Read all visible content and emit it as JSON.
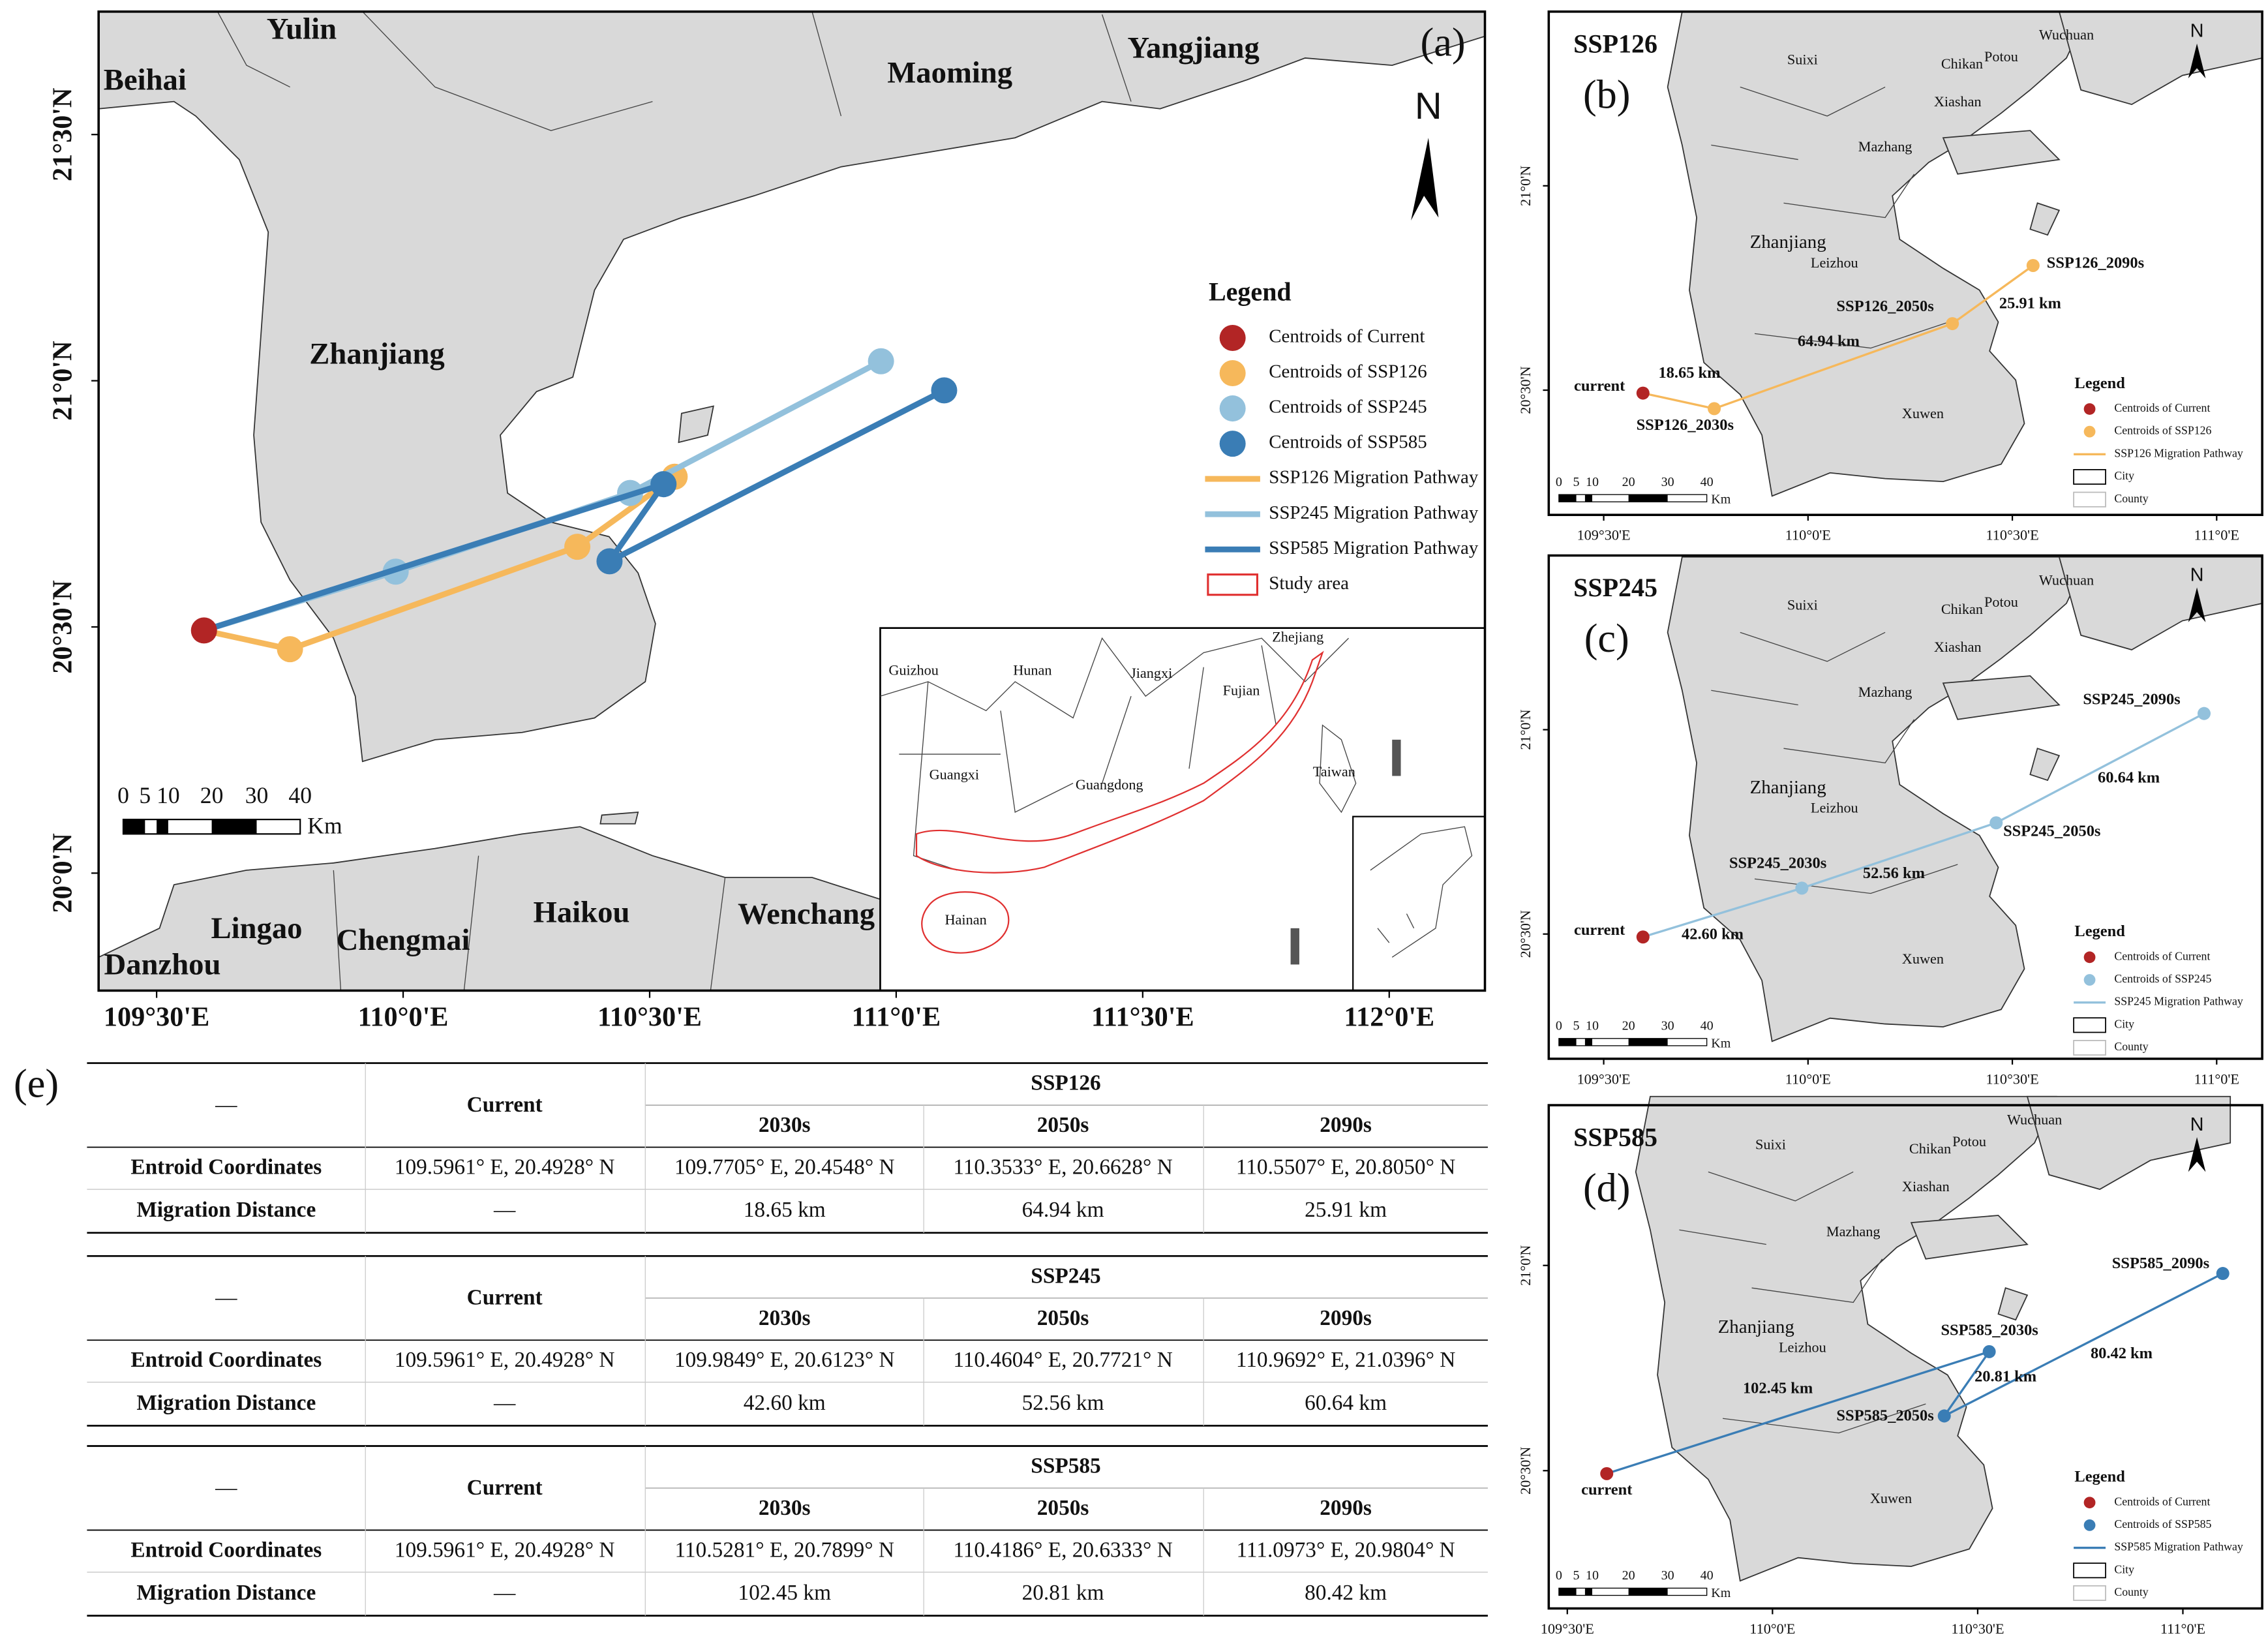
{
  "panel_a": {
    "label": "(a)",
    "north": "N",
    "places": [
      "Yulin",
      "Beihai",
      "Maoming",
      "Yangjiang",
      "Zhanjiang",
      "Lingao",
      "Chengmai",
      "Haikou",
      "Wenchang",
      "Danzhou"
    ],
    "inset_places": [
      "Guizhou",
      "Hunan",
      "Jiangxi",
      "Zhejiang",
      "Fujian",
      "Guangxi",
      "Guangdong",
      "Taiwan",
      "Hainan"
    ],
    "legend": {
      "title": "Legend",
      "items": [
        "Centroids of Current",
        "Centroids of SSP126",
        "Centroids of SSP245",
        "Centroids of SSP585",
        "SSP126 Migration Pathway",
        "SSP245 Migration Pathway",
        "SSP585 Migration Pathway",
        "Study area"
      ]
    },
    "scale_labels": [
      "0",
      "5",
      "10",
      "20",
      "30",
      "40"
    ],
    "scale_unit": "Km",
    "xticks": [
      {
        "value": 109.5,
        "label": "109°30'E"
      },
      {
        "value": 110,
        "label": "110°0'E"
      },
      {
        "value": 110.5,
        "label": "110°30'E"
      },
      {
        "value": 111,
        "label": "111°0'E"
      },
      {
        "value": 111.5,
        "label": "111°30'E"
      },
      {
        "value": 112,
        "label": "112°0'E"
      }
    ],
    "yticks": [
      {
        "value": 20,
        "label": "20°0'N"
      },
      {
        "value": 20.5,
        "label": "20°30'N"
      },
      {
        "value": 21,
        "label": "21°0'N"
      },
      {
        "value": 21.5,
        "label": "21°30'N"
      }
    ]
  },
  "panels": [
    {
      "title": "SSP126",
      "label": "(b)",
      "north": "N",
      "places": [
        "Suixi",
        "Chikan",
        "Potou",
        "Wuchuan",
        "Xiashan",
        "Mazhang",
        "Zhanjiang",
        "Leizhou",
        "Xuwen"
      ],
      "point_labels": [
        "current",
        "SSP126_2030s",
        "SSP126_2050s",
        "SSP126_2090s"
      ],
      "distance_labels": [
        "18.65 km",
        "64.94 km",
        "25.91 km"
      ],
      "legend": {
        "title": "Legend",
        "items": [
          "Centroids of Current",
          "Centroids of SSP126",
          "SSP126 Migration Pathway",
          "City",
          "County"
        ]
      },
      "scale_labels": [
        "0",
        "5",
        "10",
        "20",
        "30",
        "40"
      ],
      "scale_unit": "Km",
      "xticks": [
        {
          "value": 109.5,
          "label": "109°30'E"
        },
        {
          "value": 110,
          "label": "110°0'E"
        },
        {
          "value": 110.5,
          "label": "110°30'E"
        },
        {
          "value": 111,
          "label": "111°0'E"
        }
      ],
      "yticks": [
        {
          "value": 20.5,
          "label": "20°30'N"
        },
        {
          "value": 21,
          "label": "21°0'N"
        }
      ]
    },
    {
      "title": "SSP245",
      "label": "(c)",
      "north": "N",
      "places": [
        "Suixi",
        "Chikan",
        "Potou",
        "Wuchuan",
        "Xiashan",
        "Mazhang",
        "Zhanjiang",
        "Leizhou",
        "Xuwen"
      ],
      "point_labels": [
        "current",
        "SSP245_2030s",
        "SSP245_2050s",
        "SSP245_2090s"
      ],
      "distance_labels": [
        "42.60 km",
        "52.56 km",
        "60.64 km"
      ],
      "legend": {
        "title": "Legend",
        "items": [
          "Centroids of Current",
          "Centroids of SSP245",
          "SSP245 Migration Pathway",
          "City",
          "County"
        ]
      },
      "scale_labels": [
        "0",
        "5",
        "10",
        "20",
        "30",
        "40"
      ],
      "scale_unit": "Km",
      "xticks": [
        {
          "value": 109.5,
          "label": "109°30'E"
        },
        {
          "value": 110,
          "label": "110°0'E"
        },
        {
          "value": 110.5,
          "label": "110°30'E"
        },
        {
          "value": 111,
          "label": "111°0'E"
        }
      ],
      "yticks": [
        {
          "value": 20.5,
          "label": "20°30'N"
        },
        {
          "value": 21,
          "label": "21°0'N"
        }
      ]
    },
    {
      "title": "SSP585",
      "label": "(d)",
      "north": "N",
      "places": [
        "Suixi",
        "Chikan",
        "Potou",
        "Wuchuan",
        "Xiashan",
        "Mazhang",
        "Zhanjiang",
        "Leizhou",
        "Xuwen"
      ],
      "point_labels": [
        "current",
        "SSP585_2030s",
        "SSP585_2050s",
        "SSP585_2090s"
      ],
      "distance_labels": [
        "102.45 km",
        "20.81 km",
        "80.42 km"
      ],
      "legend": {
        "title": "Legend",
        "items": [
          "Centroids of Current",
          "Centroids of SSP585",
          "SSP585 Migration Pathway",
          "City",
          "County"
        ]
      },
      "scale_labels": [
        "0",
        "5",
        "10",
        "20",
        "30",
        "40"
      ],
      "scale_unit": "Km",
      "xticks": [
        {
          "value": 109.5,
          "label": "109°30'E"
        },
        {
          "value": 110,
          "label": "110°0'E"
        },
        {
          "value": 110.5,
          "label": "110°30'E"
        },
        {
          "value": 111,
          "label": "111°0'E"
        }
      ],
      "yticks": [
        {
          "value": 20.5,
          "label": "20°30'N"
        },
        {
          "value": 21,
          "label": "21°0'N"
        }
      ]
    }
  ],
  "centroids": {
    "current": {
      "lon": 109.5961,
      "lat": 20.4928,
      "color": "#b22525"
    },
    "scenarios": [
      {
        "color": "#f6b85b",
        "points": [
          {
            "lon": 109.7705,
            "lat": 20.4548
          },
          {
            "lon": 110.3533,
            "lat": 20.6628
          },
          {
            "lon": 110.5507,
            "lat": 20.805
          }
        ]
      },
      {
        "color": "#93c1dc",
        "points": [
          {
            "lon": 109.9849,
            "lat": 20.6123
          },
          {
            "lon": 110.4604,
            "lat": 20.7721
          },
          {
            "lon": 110.9692,
            "lat": 21.0396
          }
        ]
      },
      {
        "color": "#3a7db5",
        "points": [
          {
            "lon": 110.5281,
            "lat": 20.7899
          },
          {
            "lon": 110.4186,
            "lat": 20.6333
          },
          {
            "lon": 111.0973,
            "lat": 20.9804
          }
        ]
      }
    ]
  },
  "table": {
    "label": "(e)",
    "blocks": [
      {
        "header": [
          "—",
          "Current",
          "SSP126"
        ],
        "periods": [
          "2030s",
          "2050s",
          "2090s"
        ],
        "rows": [
          [
            "Entroid Coordinates",
            "109.5961° E, 20.4928° N",
            "109.7705° E, 20.4548° N",
            "110.3533° E, 20.6628° N",
            "110.5507° E, 20.8050° N"
          ],
          [
            "Migration Distance",
            "—",
            "18.65 km",
            "64.94 km",
            "25.91 km"
          ]
        ]
      },
      {
        "header": [
          "—",
          "Current",
          "SSP245"
        ],
        "periods": [
          "2030s",
          "2050s",
          "2090s"
        ],
        "rows": [
          [
            "Entroid Coordinates",
            "109.5961° E, 20.4928° N",
            "109.9849° E, 20.6123° N",
            "110.4604° E, 20.7721° N",
            "110.9692° E, 21.0396° N"
          ],
          [
            "Migration Distance",
            "—",
            "42.60 km",
            "52.56 km",
            "60.64 km"
          ]
        ]
      },
      {
        "header": [
          "—",
          "Current",
          "SSP585"
        ],
        "periods": [
          "2030s",
          "2050s",
          "2090s"
        ],
        "rows": [
          [
            "Entroid Coordinates",
            "109.5961° E, 20.4928° N",
            "110.5281° E, 20.7899° N",
            "110.4186° E, 20.6333° N",
            "111.0973° E, 20.9804° N"
          ],
          [
            "Migration Distance",
            "—",
            "102.45 km",
            "20.81 km",
            "80.42 km"
          ]
        ]
      }
    ]
  }
}
